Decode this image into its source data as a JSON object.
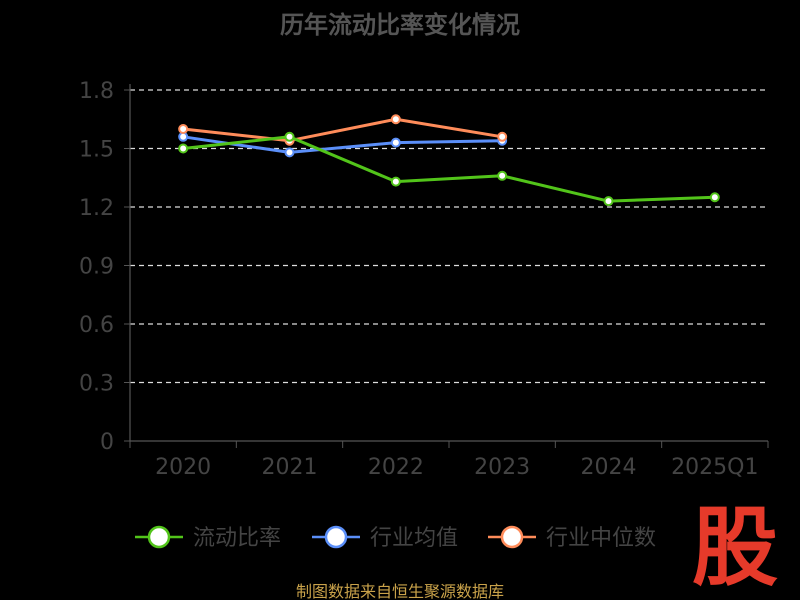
{
  "chart_data": {
    "type": "line",
    "title": "历年流动比率变化情况",
    "categories": [
      "2020",
      "2021",
      "2022",
      "2023",
      "2024",
      "2025Q1"
    ],
    "ylim": [
      0,
      1.8
    ],
    "yticks": [
      "0",
      "0.3",
      "0.6",
      "0.9",
      "1.2",
      "1.5",
      "1.8"
    ],
    "grid": true,
    "legend_position": "bottom",
    "series": [
      {
        "name": "流动比率",
        "color": "#52c41a",
        "values": [
          1.5,
          1.56,
          1.33,
          1.36,
          1.23,
          1.25
        ]
      },
      {
        "name": "行业均值",
        "color": "#5b8ff9",
        "values": [
          1.56,
          1.48,
          1.53,
          1.54,
          null,
          null
        ]
      },
      {
        "name": "行业中位数",
        "color": "#ff8c5a",
        "values": [
          1.6,
          1.54,
          1.65,
          1.56,
          null,
          null
        ]
      }
    ]
  },
  "source": "制图数据来自恒生聚源数据库",
  "logo_text": "股"
}
